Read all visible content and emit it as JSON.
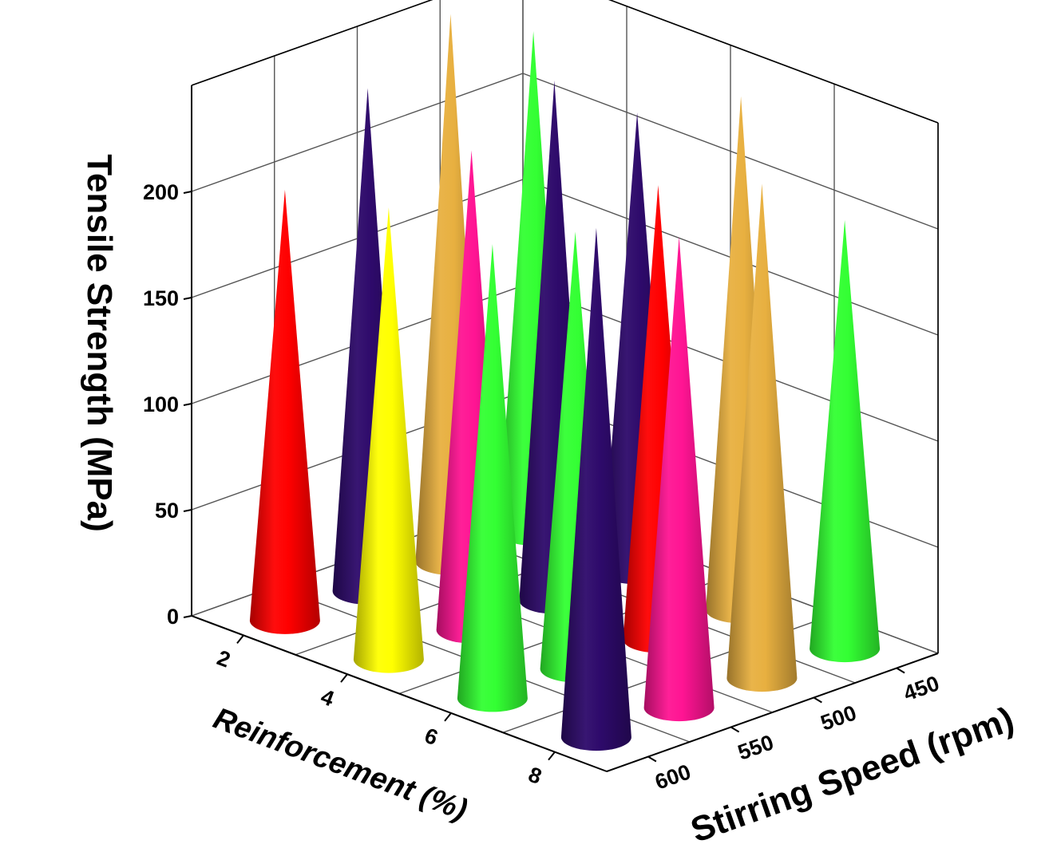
{
  "chart_data": {
    "type": "3d-cone",
    "zlabel": "Tensile Strength (MPa)",
    "xlabel": "Reinforcement (%)",
    "ylabel": "Stirring Speed (rpm)",
    "zlim": [
      0,
      250
    ],
    "z_ticks": [
      0,
      50,
      100,
      150,
      200
    ],
    "x_ticks": [
      "2",
      "4",
      "6",
      "8"
    ],
    "y_ticks": [
      "450",
      "500",
      "550",
      "600"
    ],
    "grid": true,
    "colors": {
      "red": "#ff0000",
      "yellow": "#ffff00",
      "green": "#33ff33",
      "indigo": "#2e0a6b",
      "pink": "#ff1493",
      "gold": "#e8b040"
    },
    "points": [
      {
        "reinforcement": "2",
        "speed": "600",
        "strength": 203,
        "color": "red"
      },
      {
        "reinforcement": "4",
        "speed": "600",
        "strength": 213,
        "color": "yellow"
      },
      {
        "reinforcement": "6",
        "speed": "600",
        "strength": 214,
        "color": "green"
      },
      {
        "reinforcement": "8",
        "speed": "600",
        "strength": 240,
        "color": "indigo"
      },
      {
        "reinforcement": "2",
        "speed": "550",
        "strength": 237,
        "color": "indigo"
      },
      {
        "reinforcement": "4",
        "speed": "550",
        "strength": 226,
        "color": "pink"
      },
      {
        "reinforcement": "6",
        "speed": "550",
        "strength": 206,
        "color": "green"
      },
      {
        "reinforcement": "8",
        "speed": "550",
        "strength": 222,
        "color": "pink"
      },
      {
        "reinforcement": "2",
        "speed": "500",
        "strength": 258,
        "color": "gold"
      },
      {
        "reinforcement": "4",
        "speed": "500",
        "strength": 245,
        "color": "indigo"
      },
      {
        "reinforcement": "6",
        "speed": "500",
        "strength": 214,
        "color": "red"
      },
      {
        "reinforcement": "8",
        "speed": "500",
        "strength": 233,
        "color": "gold"
      },
      {
        "reinforcement": "2",
        "speed": "450",
        "strength": 236,
        "color": "green"
      },
      {
        "reinforcement": "4",
        "speed": "450",
        "strength": 216,
        "color": "indigo"
      },
      {
        "reinforcement": "6",
        "speed": "450",
        "strength": 242,
        "color": "gold"
      },
      {
        "reinforcement": "8",
        "speed": "450",
        "strength": 202,
        "color": "green"
      }
    ]
  }
}
